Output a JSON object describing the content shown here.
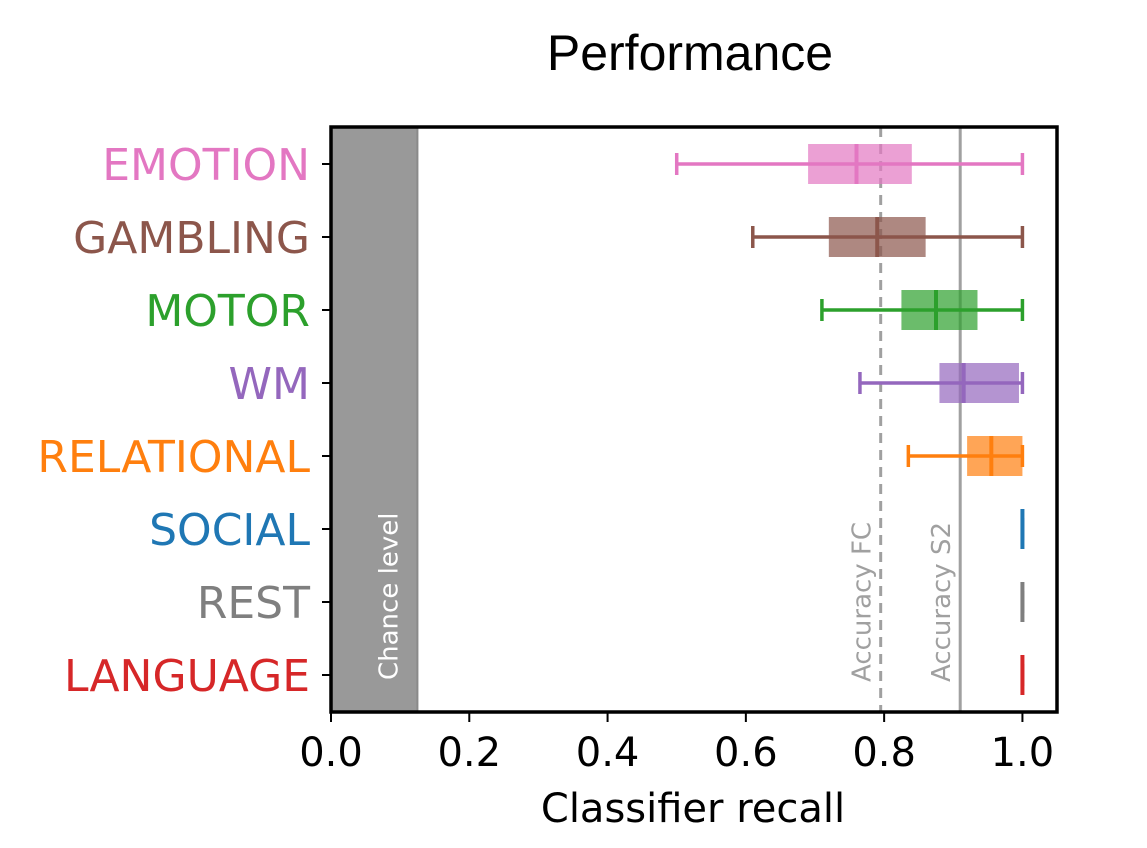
{
  "chart_data": {
    "type": "box",
    "title": "Performance",
    "xlabel": "Classifier recall",
    "ylabel": "",
    "xlim": [
      0.0,
      1.05
    ],
    "xticks": [
      0.0,
      0.2,
      0.4,
      0.6,
      0.8,
      1.0
    ],
    "xtick_labels": [
      "0.0",
      "0.2",
      "0.4",
      "0.6",
      "0.8",
      "1.0"
    ],
    "grid": false,
    "categories": [
      {
        "name": "EMOTION",
        "color": "#e377c2",
        "whisker_low": 0.5,
        "q1": 0.69,
        "median": 0.76,
        "q3": 0.84,
        "whisker_high": 1.0
      },
      {
        "name": "GAMBLING",
        "color": "#8c564b",
        "whisker_low": 0.61,
        "q1": 0.72,
        "median": 0.79,
        "q3": 0.86,
        "whisker_high": 1.0
      },
      {
        "name": "MOTOR",
        "color": "#2ca02c",
        "whisker_low": 0.71,
        "q1": 0.825,
        "median": 0.875,
        "q3": 0.935,
        "whisker_high": 1.0
      },
      {
        "name": "WM",
        "color": "#9467bd",
        "whisker_low": 0.765,
        "q1": 0.88,
        "median": 0.915,
        "q3": 0.995,
        "whisker_high": 1.0
      },
      {
        "name": "RELATIONAL",
        "color": "#ff7f0e",
        "whisker_low": 0.835,
        "q1": 0.92,
        "median": 0.955,
        "q3": 1.0,
        "whisker_high": 1.0
      },
      {
        "name": "SOCIAL",
        "color": "#1f77b4",
        "whisker_low": 1.0,
        "q1": 1.0,
        "median": 1.0,
        "q3": 1.0,
        "whisker_high": 1.0
      },
      {
        "name": "REST",
        "color": "#7f7f7f",
        "whisker_low": 1.0,
        "q1": 1.0,
        "median": 1.0,
        "q3": 1.0,
        "whisker_high": 1.0
      },
      {
        "name": "LANGUAGE",
        "color": "#d62728",
        "whisker_low": 1.0,
        "q1": 1.0,
        "median": 1.0,
        "q3": 1.0,
        "whisker_high": 1.0
      }
    ],
    "chance_level": {
      "label": "Chance level",
      "value": 0.125,
      "color": "#999999"
    },
    "reference_lines": [
      {
        "label": "Accuracy FC",
        "value": 0.795,
        "style": "dashed",
        "color": "#a0a0a0"
      },
      {
        "label": "Accuracy S2",
        "value": 0.91,
        "style": "solid",
        "color": "#a0a0a0"
      }
    ]
  }
}
